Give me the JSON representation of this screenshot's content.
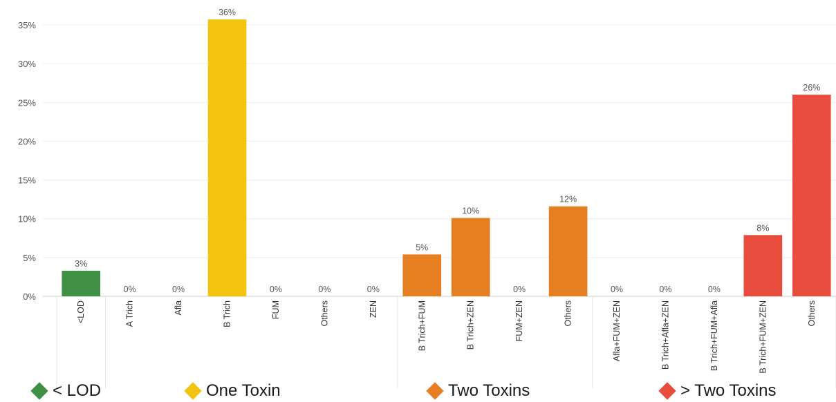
{
  "chart_data": {
    "type": "bar",
    "ylim": [
      0,
      0.36
    ],
    "yticks": [
      "0%",
      "5%",
      "10%",
      "15%",
      "20%",
      "25%",
      "30%",
      "35%"
    ],
    "categories": [
      "<LOD",
      "A Trich",
      "Afla",
      "B Trich",
      "FUM",
      "Others",
      "ZEN",
      "B Trich+FUM",
      "B Trich+ZEN",
      "FUM+ZEN",
      "Others",
      "Afla+FUM+ZEN",
      "B Trich+Afla+ZEN",
      "B Trich+FUM+Afla",
      "B Trich+FUM+ZEN",
      "Others"
    ],
    "values": [
      0.033,
      0,
      0,
      0.357,
      0,
      0,
      0,
      0.054,
      0.101,
      0,
      0.116,
      0,
      0,
      0,
      0.079,
      0.26
    ],
    "data_labels": [
      "3%",
      "0%",
      "0%",
      "36%",
      "0%",
      "0%",
      "0%",
      "5%",
      "10%",
      "0%",
      "12%",
      "0%",
      "0%",
      "0%",
      "8%",
      "26%"
    ],
    "groups": [
      {
        "name": "< LOD",
        "color": "#3f8f45",
        "indices": [
          0
        ]
      },
      {
        "name": "One Toxin",
        "color": "#f2c40f",
        "indices": [
          1,
          2,
          3,
          4,
          5,
          6
        ]
      },
      {
        "name": "Two Toxins",
        "color": "#e67e22",
        "indices": [
          7,
          8,
          9,
          10
        ]
      },
      {
        "name": "> Two Toxins",
        "color": "#e74c3c",
        "indices": [
          11,
          12,
          13,
          14,
          15
        ]
      }
    ],
    "grid": true,
    "legend_position": "bottom"
  }
}
